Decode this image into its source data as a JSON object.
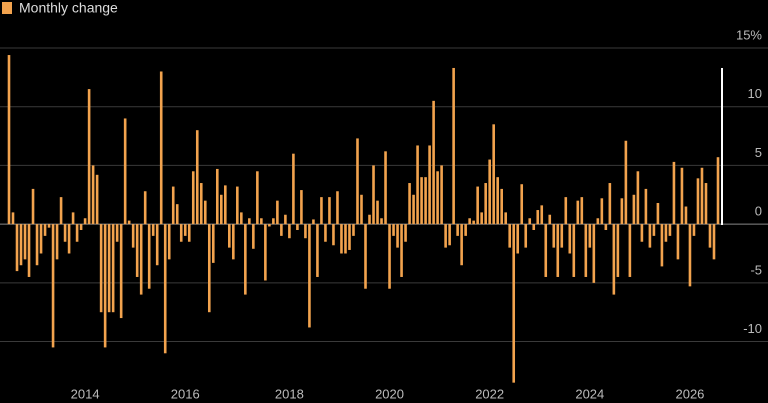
{
  "chart_data": {
    "type": "bar",
    "legend": "Monthly change",
    "color": "#f2a34e",
    "grid": true,
    "ylim": [
      -13.7,
      15
    ],
    "yticks": [
      -10,
      -5,
      0,
      5,
      10,
      {
        "value": 15,
        "label": "15%"
      }
    ],
    "categories": [
      null,
      null,
      null,
      null,
      null,
      null,
      null,
      null,
      null,
      null,
      null,
      null,
      null,
      null,
      null,
      null,
      null,
      null,
      null,
      "2014",
      null,
      null,
      null,
      null,
      null,
      null,
      null,
      null,
      null,
      null,
      null,
      null,
      null,
      null,
      null,
      null,
      null,
      null,
      null,
      null,
      null,
      null,
      null,
      null,
      "2016",
      null,
      null,
      null,
      null,
      null,
      null,
      null,
      null,
      null,
      null,
      null,
      null,
      null,
      null,
      null,
      null,
      null,
      null,
      null,
      null,
      null,
      null,
      null,
      null,
      null,
      "2018",
      null,
      null,
      null,
      null,
      null,
      null,
      null,
      null,
      null,
      null,
      null,
      null,
      null,
      null,
      null,
      null,
      null,
      null,
      null,
      null,
      null,
      null,
      null,
      null,
      "2020",
      null,
      null,
      null,
      null,
      null,
      null,
      null,
      null,
      null,
      null,
      null,
      null,
      null,
      null,
      null,
      null,
      null,
      null,
      null,
      null,
      null,
      null,
      null,
      null,
      "2022",
      null,
      null,
      null,
      null,
      null,
      null,
      null,
      null,
      null,
      null,
      null,
      null,
      null,
      null,
      null,
      null,
      null,
      null,
      null,
      null,
      null,
      null,
      null,
      null,
      "2024",
      null,
      null,
      null,
      null,
      null,
      null,
      null,
      null,
      null,
      null,
      null,
      null,
      null,
      null,
      null,
      null,
      null,
      null,
      null,
      null,
      null,
      null,
      null,
      null,
      "2026",
      null,
      null,
      null,
      null,
      null,
      null,
      null
    ],
    "values": [
      14.4,
      1,
      -4,
      -3.5,
      -3,
      -4.5,
      3,
      -3.5,
      -2.5,
      -1,
      -0.3,
      -10.5,
      -3,
      2.3,
      -1.5,
      -2.5,
      1,
      -1.5,
      -0.5,
      0.5,
      11.5,
      5,
      4.2,
      -7.5,
      -10.5,
      -7.5,
      -7.5,
      -1.5,
      -8,
      9,
      0.3,
      -2,
      -4.5,
      -6,
      2.8,
      -5.5,
      -1,
      -3.5,
      13,
      -11,
      -3,
      3.2,
      1.7,
      -1.5,
      -1,
      -1.5,
      4.5,
      8,
      3.5,
      2,
      -7.5,
      -3.3,
      4.7,
      2.5,
      3.3,
      -2,
      -3,
      3.2,
      1,
      -6,
      0.5,
      -2.1,
      4.5,
      0.5,
      -4.8,
      -0.2,
      0.5,
      2,
      -1,
      0.8,
      -1.2,
      6,
      -0.5,
      2.9,
      -1.2,
      -8.8,
      0.4,
      -4.5,
      2.3,
      -1.5,
      2.3,
      -1.8,
      2.8,
      -2.5,
      -2.5,
      -2.2,
      -1,
      7.3,
      2.5,
      -5.5,
      0.8,
      5,
      2,
      0.5,
      6.2,
      -5.5,
      -1,
      -2,
      -4.5,
      -1.5,
      3.5,
      2.5,
      6.7,
      4,
      4,
      6.7,
      10.5,
      4.5,
      5,
      -2,
      -1.8,
      13.3,
      -1,
      -3.5,
      -1,
      0.5,
      0.3,
      3.2,
      1,
      3.5,
      5.5,
      8.5,
      4,
      3,
      1,
      -2,
      -13.5,
      -2.5,
      3.4,
      -2,
      0.5,
      -0.5,
      1.2,
      1.6,
      -4.5,
      0.8,
      -2,
      -4.5,
      -2,
      2.3,
      -2.5,
      -4.5,
      2,
      2.3,
      -4.5,
      -2,
      -5,
      0.5,
      2.2,
      -0.5,
      3.5,
      -6,
      -4.5,
      2.2,
      7.1,
      -4.5,
      2.5,
      4.5,
      -1.5,
      3,
      -2,
      -1,
      1.8,
      -3.6,
      -1.5,
      -1,
      5.3,
      -3,
      4.8,
      1.5,
      -5.3,
      -1,
      3.9,
      4.8,
      3.5,
      -2,
      -3,
      5.7
    ]
  }
}
